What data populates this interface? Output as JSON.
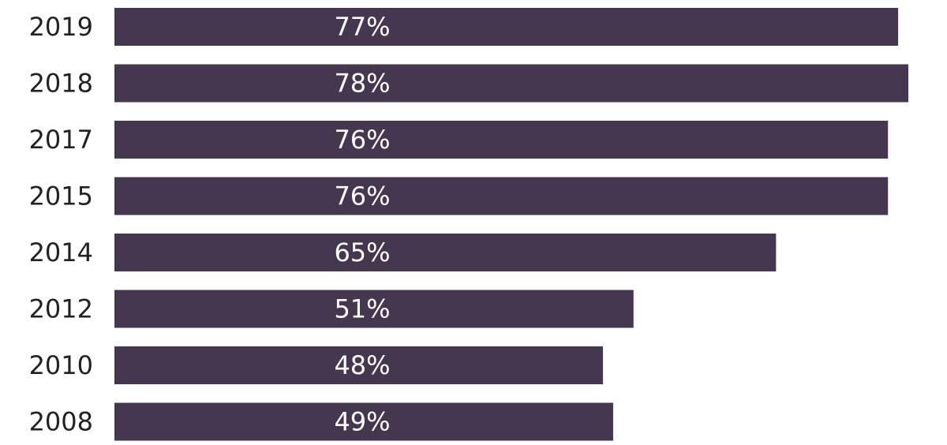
{
  "chart_data": {
    "type": "bar",
    "orientation": "horizontal",
    "categories": [
      "2019",
      "2018",
      "2017",
      "2015",
      "2014",
      "2012",
      "2010",
      "2008"
    ],
    "values": [
      77,
      78,
      76,
      76,
      65,
      51,
      48,
      49
    ],
    "data_labels": [
      "77%",
      "78%",
      "76%",
      "76%",
      "65%",
      "51%",
      "48%",
      "49%"
    ],
    "title": "",
    "xlabel": "",
    "ylabel": "",
    "xlim": [
      0,
      78
    ],
    "grid": false,
    "legend": "none",
    "bar_color": "#45374f",
    "label_color": "#ffffff"
  }
}
